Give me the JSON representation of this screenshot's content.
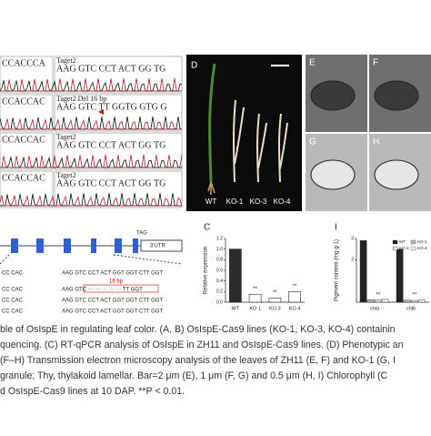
{
  "chromatogram": {
    "left_sequences": [
      "CCACCCA",
      "CCACCAC",
      "CCACCAC",
      "CCACCAC"
    ],
    "rows": [
      {
        "title": "Taget2",
        "sequence": "AAG GTC CCT ACT GG TG"
      },
      {
        "title": "Taget2 Del 16 bp",
        "sequence": "AAG GTC TT GGTG GTG G"
      },
      {
        "title": "Taget2",
        "sequence": "AAG GTC CCT ACT GG TG"
      },
      {
        "title": "Taget2",
        "sequence": "AAG GTC CCT ACT GG TG"
      }
    ]
  },
  "gene": {
    "stop": "TAG",
    "utr": "3'UTR",
    "left_sequences": [
      "CC CAC",
      "CC CAC",
      "CC CAC",
      "CC CAC"
    ],
    "deletion": "16 bp",
    "sequences": [
      "AAG GTC CCT ACT GGT GGT CTT GGT",
      "AAG GTC ··· ··· ··· ··· ··· TT GGT",
      "AAG GTC CCT ACT GGT GGT CTT GGT",
      "AAG GTC CCT ACT GGT GGT CTT GGT"
    ]
  },
  "phenotype": {
    "label": "D",
    "lines": [
      "WT",
      "KO-1",
      "KO-3",
      "KO-4"
    ]
  },
  "tem": {
    "labels": [
      "E",
      "F",
      "G",
      "H"
    ]
  },
  "chart_data": [
    {
      "type": "bar",
      "label": "C",
      "ylabel": "Relative expression",
      "categories": [
        "WT",
        "KO 1",
        "KO 3",
        "KO 4"
      ],
      "values": [
        1.0,
        0.15,
        0.08,
        0.2
      ],
      "annotations": [
        null,
        "**",
        "**",
        "**"
      ],
      "color": "#2b2b2b",
      "ylim": [
        0,
        1.2
      ],
      "yticks": [
        {
          "value": 0,
          "label": "0.0"
        },
        0.2,
        0.4,
        0.6,
        0.8,
        {
          "value": 1,
          "label": "1.0"
        },
        1.2
      ]
    },
    {
      "type": "grouped_bar",
      "label": "I",
      "ylabel": "Pigment content (mg·g-1)",
      "categories": [
        "chla",
        "chlb"
      ],
      "series": [
        {
          "name": "WT",
          "color": "#222222",
          "values": [
            2.9,
            2.5
          ]
        },
        {
          "name": "KO-1",
          "color": "#bbbbbb",
          "values": [
            0.12,
            0.1
          ]
        },
        {
          "name": "KO-3",
          "color": "#dddddd",
          "values": [
            0.1,
            0.08
          ]
        },
        {
          "name": "KO-4",
          "color": "#eeeeee",
          "values": [
            0.14,
            0.11
          ]
        }
      ],
      "annotations": [
        "**",
        "**"
      ],
      "ylim": [
        0,
        3
      ],
      "yticks": [
        2,
        3
      ]
    }
  ],
  "caption": [
    "ble of OsIspE in regulating leaf color. (A, B) OsIspE-Cas9 lines (KO-1, KO-3, KO-4) containin",
    "quencing. (C) RT-qPCR analysis of OsIspE in ZH11 and OsIspE-Cas9 lines. (D) Phenotypic an",
    "(F–H) Transmission electron microscopy analysis of the leaves of ZH11 (E, F) and KO-1 (G, I",
    " granule; Thy, thylakoid lamellar. Bar=2 μm (E), 1 μm (F, G) and 0.5 μm (H, I) Chlorophyll (C",
    "d OsIspE-Cas9 lines at 10 DAP. **P < 0.01."
  ]
}
